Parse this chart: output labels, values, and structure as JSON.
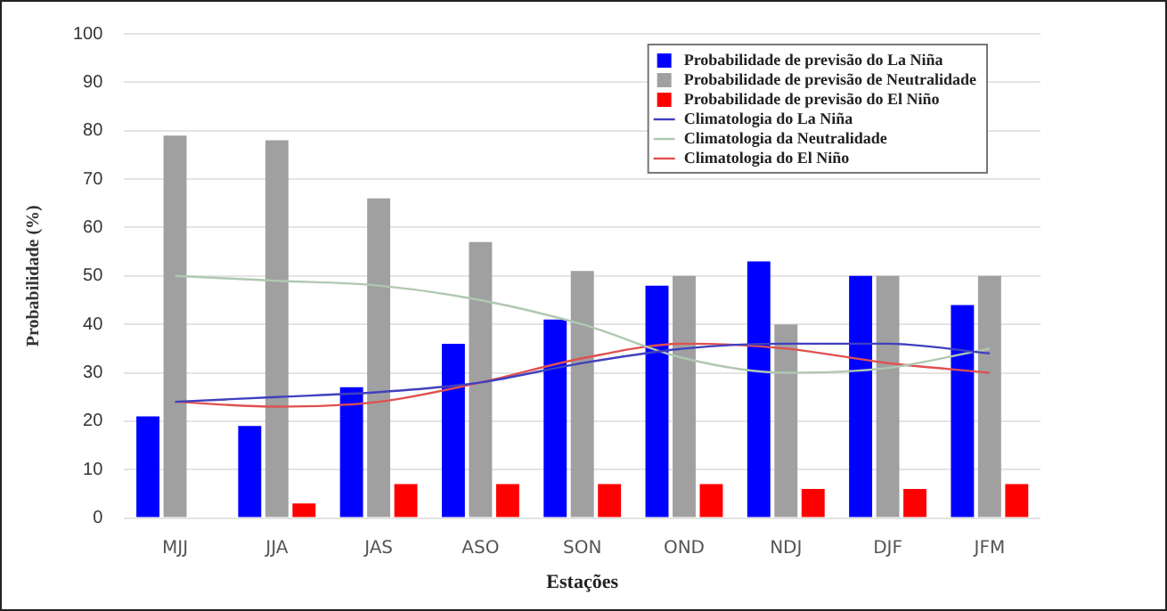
{
  "chart_data": {
    "type": "bar",
    "xlabel": "Estações",
    "ylabel": "Probabilidade (%)",
    "categories": [
      "MJJ",
      "JJA",
      "JAS",
      "ASO",
      "SON",
      "OND",
      "NDJ",
      "DJF",
      "JFM"
    ],
    "series": [
      {
        "name": "Probabilidade de previsão do La Niña",
        "color": "#0000ff",
        "values": [
          21,
          19,
          27,
          36,
          41,
          48,
          53,
          50,
          44
        ]
      },
      {
        "name": "Probabilidade de previsão de Neutralidade",
        "color": "#a0a0a0",
        "values": [
          79,
          78,
          66,
          57,
          51,
          50,
          40,
          50,
          50
        ]
      },
      {
        "name": "Probabilidade de previsão do El Niño",
        "color": "#ff0000",
        "values": [
          0,
          3,
          7,
          7,
          7,
          7,
          6,
          6,
          7
        ]
      },
      {
        "name": "Climatologia do La Niña",
        "type": "line",
        "color": "#4040c0",
        "values": [
          24,
          25,
          26,
          28,
          32,
          35,
          36,
          36,
          34
        ]
      },
      {
        "name": "Climatologia da Neutralidade",
        "type": "line",
        "color": "#b0c8b0",
        "values": [
          50,
          49,
          48,
          45,
          40,
          33,
          30,
          31,
          35
        ]
      },
      {
        "name": "Climatologia do El Niño",
        "type": "line",
        "color": "#e05050",
        "values": [
          24,
          23,
          24,
          28,
          33,
          36,
          35,
          32,
          30
        ]
      }
    ],
    "ylim": [
      0,
      100
    ],
    "yticks": [
      0,
      10,
      20,
      30,
      40,
      50,
      60,
      70,
      80,
      90,
      100
    ],
    "grid": "y",
    "legend": "top right",
    "marker": "none"
  }
}
